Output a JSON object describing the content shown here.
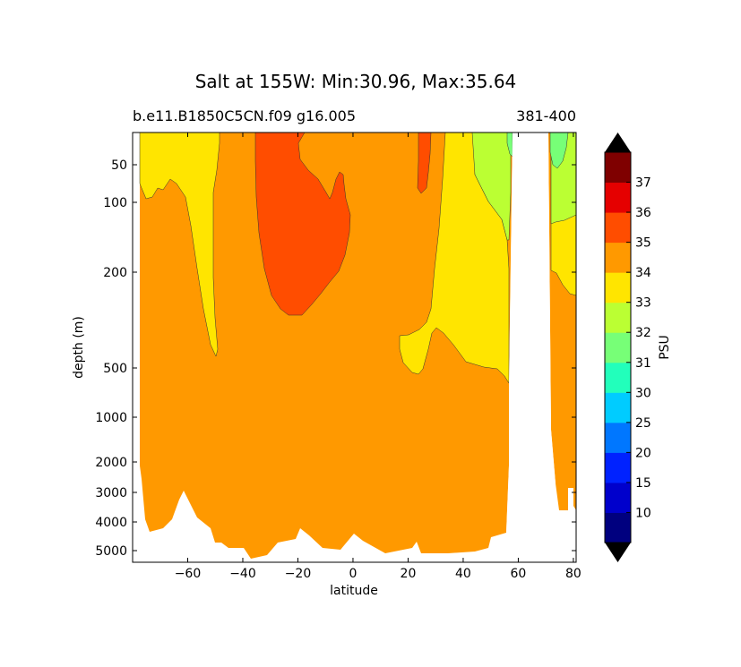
{
  "chart_data": {
    "type": "contour",
    "title": "Salt at 155W: Min:30.96, Max:35.64",
    "subtitle_left": "b.e11.B1850C5CN.f09 g16.005",
    "subtitle_right": "381-400",
    "xlabel": "latitude",
    "ylabel": "depth (m)",
    "x_ticks": [
      "−60",
      "−40",
      "−20",
      "0",
      "20",
      "40",
      "60",
      "80"
    ],
    "x_tick_values": [
      -60,
      -40,
      -20,
      0,
      20,
      40,
      60,
      80
    ],
    "xlim": [
      -80,
      81
    ],
    "y_ticks": [
      "50",
      "100",
      "200",
      "500",
      "1000",
      "2000",
      "3000",
      "4000",
      "5000"
    ],
    "y_tick_values": [
      50,
      100,
      200,
      500,
      1000,
      2000,
      3000,
      4000,
      5000
    ],
    "y_inverted": true,
    "colorbar": {
      "label": "PSU",
      "levels": [
        "10",
        "15",
        "20",
        "25",
        "30",
        "31",
        "32",
        "33",
        "34",
        "35",
        "36",
        "37"
      ],
      "colors": [
        "#00007f",
        "#0000cc",
        "#0022ff",
        "#0077ff",
        "#00ccff",
        "#22ffbb",
        "#77ff77",
        "#bbff33",
        "#ffe500",
        "#ff9900",
        "#ff4d00",
        "#e50000",
        "#7f0000"
      ],
      "extend": "both"
    },
    "regions": [
      {
        "name": "33-34 PSU",
        "fill": "#ffe500",
        "where": "upper ocean near 60-50S, 30-55N, and 72-80N"
      },
      {
        "name": "34-35 PSU",
        "fill": "#ff9900",
        "where": "most of the section"
      },
      {
        "name": "35-36 PSU",
        "fill": "#ff4d00",
        "where": "subtropical south Pacific 35-0S above ~300 m and a small cell near 25N"
      },
      {
        "name": "32-33 PSU",
        "fill": "#bbff33",
        "where": "subpolar north Pacific 43-57N and near 80N"
      },
      {
        "name": "31-32 PSU",
        "fill": "#77ff77",
        "where": "surface near 74-79N"
      },
      {
        "name": "land",
        "fill": "#ffffff",
        "where": "57-71N and the seafloor below ~3000-5500 m"
      }
    ]
  }
}
